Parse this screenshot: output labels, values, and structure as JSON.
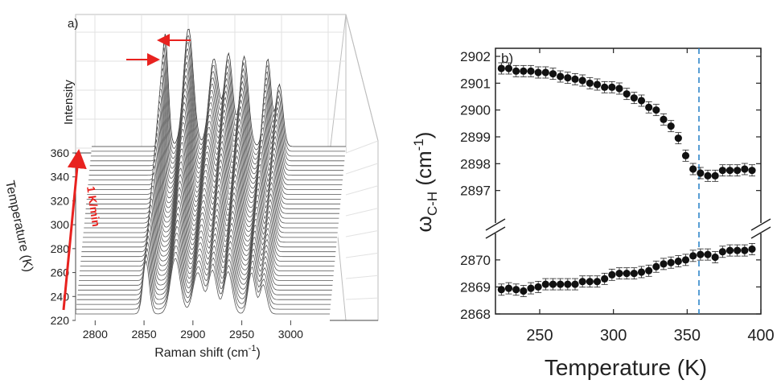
{
  "panel_a": {
    "label": "a)",
    "xlabel": "Raman shift (cm",
    "xlabel_sup": "-1",
    "xlabel_end": ")",
    "ylabel": "Temperature (K)",
    "zlabel": "Intensity",
    "ramp_label": "1 K/min",
    "arrow_color": "#e8221f",
    "x_ticks": [
      "2800",
      "2850",
      "2900",
      "2950",
      "3000"
    ],
    "y_ticks": [
      "220",
      "240",
      "260",
      "280",
      "300",
      "320",
      "340",
      "360"
    ]
  },
  "chart_data": [
    {
      "type": "line",
      "panel": "a",
      "x_unit": "cm-1",
      "x_range": [
        2780,
        3040
      ],
      "temperature_range": [
        220,
        360
      ],
      "n_spectra": 36,
      "peaks_cm1": [
        2852,
        2882,
        2905,
        2920,
        2936,
        2960,
        2972
      ],
      "shifting_peaks": {
        "low_band": "up",
        "high_band": "down"
      }
    },
    {
      "type": "scatter",
      "panel": "b",
      "label": "b)",
      "xlabel": "Temperature (K)",
      "ylabel_main": "ω",
      "ylabel_sub": "C-H",
      "ylabel_unit": " (cm",
      "ylabel_sup": "-1",
      "ylabel_end": ")",
      "xlim": [
        220,
        400
      ],
      "ylim_upper": [
        2896,
        2902.3
      ],
      "ylim_lower": [
        2868,
        2870.8
      ],
      "x_ticks": [
        "250",
        "300",
        "350",
        "400"
      ],
      "y_ticks_upper": [
        "2897",
        "2898",
        "2899",
        "2900",
        "2901",
        "2902"
      ],
      "y_ticks_lower": [
        "2868",
        "2869",
        "2870"
      ],
      "vline_x": 358,
      "vline_color": "#2f86c9",
      "series": [
        {
          "x": [
            224,
            229,
            234,
            239,
            244,
            249,
            254,
            259,
            264,
            269,
            274,
            279,
            284,
            289,
            294,
            299,
            304,
            309,
            314,
            319,
            324,
            329,
            334,
            339,
            344,
            349,
            354,
            359,
            364,
            369,
            374,
            379,
            384,
            389,
            394
          ],
          "y": [
            2901.55,
            2901.55,
            2901.45,
            2901.45,
            2901.45,
            2901.4,
            2901.4,
            2901.35,
            2901.25,
            2901.2,
            2901.15,
            2901.1,
            2901.0,
            2900.95,
            2900.85,
            2900.85,
            2900.8,
            2900.6,
            2900.45,
            2900.35,
            2900.1,
            2900.0,
            2899.65,
            2899.4,
            2898.95,
            2898.3,
            2897.8,
            2897.65,
            2897.55,
            2897.55,
            2897.75,
            2897.75,
            2897.75,
            2897.8,
            2897.75
          ]
        },
        {
          "x": [
            224,
            229,
            234,
            239,
            244,
            249,
            254,
            259,
            264,
            269,
            274,
            279,
            284,
            289,
            294,
            299,
            304,
            309,
            314,
            319,
            324,
            329,
            334,
            339,
            344,
            349,
            354,
            359,
            364,
            369,
            374,
            379,
            384,
            389,
            394
          ],
          "y": [
            2868.9,
            2868.95,
            2868.9,
            2868.85,
            2868.95,
            2869.0,
            2869.1,
            2869.1,
            2869.1,
            2869.1,
            2869.1,
            2869.2,
            2869.2,
            2869.2,
            2869.3,
            2869.45,
            2869.5,
            2869.5,
            2869.5,
            2869.55,
            2869.6,
            2869.75,
            2869.85,
            2869.9,
            2869.95,
            2870.0,
            2870.15,
            2870.2,
            2870.2,
            2870.1,
            2870.3,
            2870.35,
            2870.35,
            2870.35,
            2870.4
          ]
        }
      ]
    }
  ]
}
